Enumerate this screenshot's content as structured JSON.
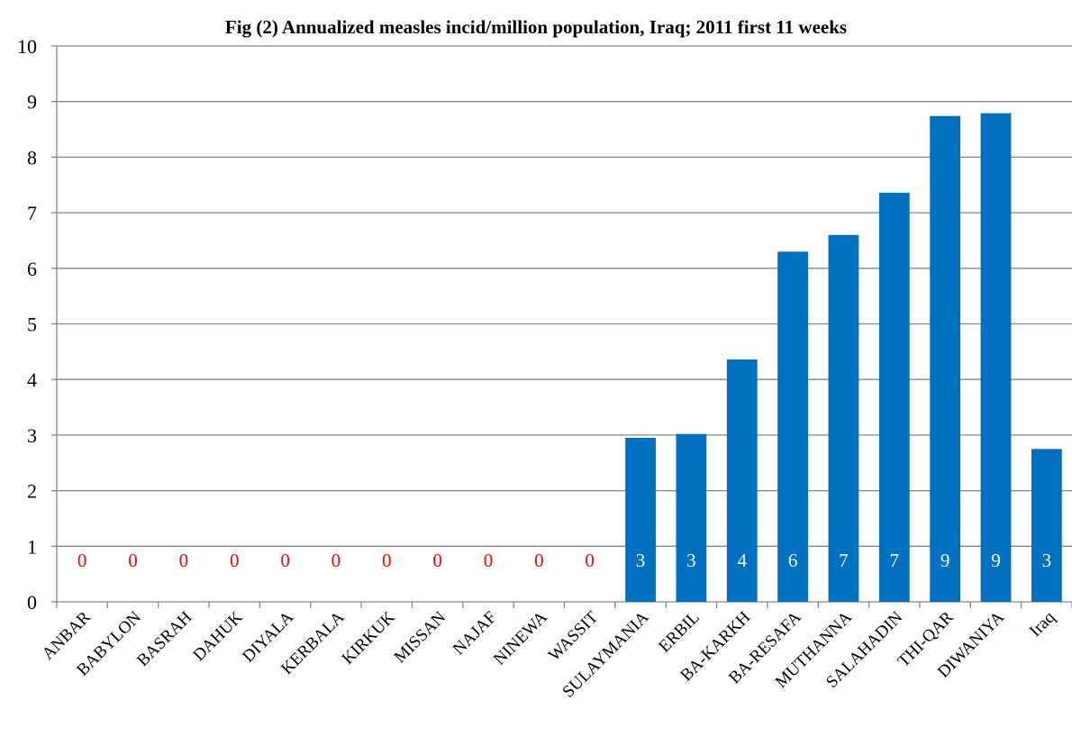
{
  "chart_data": {
    "type": "bar",
    "title": "Fig (2) Annualized measles incid/million population, Iraq;  2011 first 11 weeks",
    "xlabel": "",
    "ylabel": "",
    "categories": [
      "ANBAR",
      "BABYLON",
      "BASRAH",
      "DAHUK",
      "DIYALA",
      "KERBALA",
      "KIRKUK",
      "MISSAN",
      "NAJAF",
      "NINEWA",
      "WASSIT",
      "SULAYMANIA",
      "ERBIL",
      "BA-KARKH",
      "BA-RESAFA",
      "MUTHANNA",
      "SALAHADIN",
      "THI-QAR",
      "DIWANIYA",
      "Iraq"
    ],
    "values": [
      0,
      0,
      0,
      0,
      0,
      0,
      0,
      0,
      0,
      0,
      0,
      2.95,
      3.02,
      4.36,
      6.3,
      6.6,
      7.36,
      8.74,
      8.79,
      2.75
    ],
    "data_labels": [
      "0",
      "0",
      "0",
      "0",
      "0",
      "0",
      "0",
      "0",
      "0",
      "0",
      "0",
      "3",
      "3",
      "4",
      "6",
      "7",
      "7",
      "9",
      "9",
      "3"
    ],
    "ylim": [
      0,
      10
    ],
    "yticks": [
      0,
      1,
      2,
      3,
      4,
      5,
      6,
      7,
      8,
      9,
      10
    ],
    "grid": true,
    "legend": "none",
    "colors": {
      "bar": "#0070c0",
      "label_on_bar": "#ffffff",
      "label_zero": "#ff0000",
      "grid": "#868686",
      "axis": "#868686"
    }
  }
}
